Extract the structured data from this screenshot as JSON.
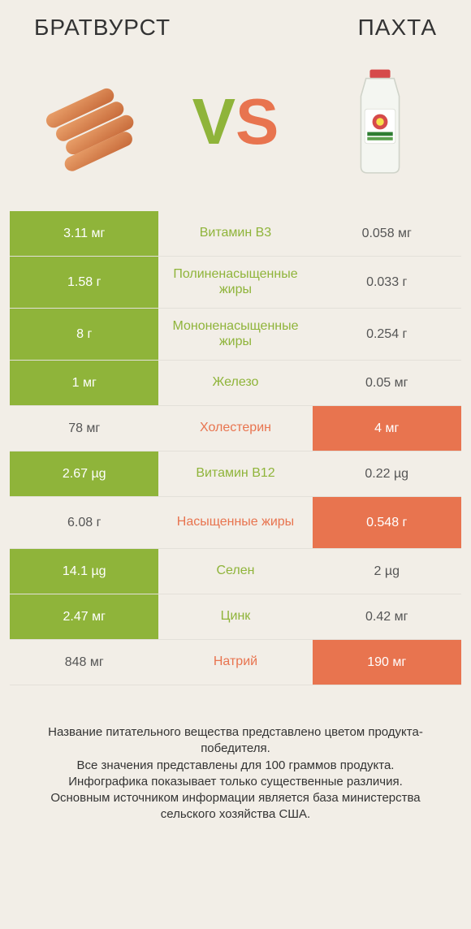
{
  "header": {
    "left_title": "БРАТВУРСТ",
    "right_title": "ПАХТА",
    "vs_v": "V",
    "vs_s": "S"
  },
  "colors": {
    "green": "#8fb43a",
    "orange": "#e8744f",
    "background": "#f2eee7"
  },
  "rows": [
    {
      "left": "3.11 мг",
      "mid": "Витамин B3",
      "right": "0.058 мг",
      "winner": "left",
      "tall": false
    },
    {
      "left": "1.58 г",
      "mid": "Полиненасыщенные жиры",
      "right": "0.033 г",
      "winner": "left",
      "tall": true
    },
    {
      "left": "8 г",
      "mid": "Мононенасыщенные жиры",
      "right": "0.254 г",
      "winner": "left",
      "tall": true
    },
    {
      "left": "1 мг",
      "mid": "Железо",
      "right": "0.05 мг",
      "winner": "left",
      "tall": false
    },
    {
      "left": "78 мг",
      "mid": "Холестерин",
      "right": "4 мг",
      "winner": "right",
      "tall": false
    },
    {
      "left": "2.67 µg",
      "mid": "Витамин B12",
      "right": "0.22 µg",
      "winner": "left",
      "tall": false
    },
    {
      "left": "6.08 г",
      "mid": "Насыщенные жиры",
      "right": "0.548 г",
      "winner": "right",
      "tall": true
    },
    {
      "left": "14.1 µg",
      "mid": "Селен",
      "right": "2 µg",
      "winner": "left",
      "tall": false
    },
    {
      "left": "2.47 мг",
      "mid": "Цинк",
      "right": "0.42 мг",
      "winner": "left",
      "tall": false
    },
    {
      "left": "848 мг",
      "mid": "Натрий",
      "right": "190 мг",
      "winner": "right",
      "tall": false
    }
  ],
  "footer": {
    "line1": "Название питательного вещества представлено цветом продукта-победителя.",
    "line2": "Все значения представлены для 100 граммов продукта.",
    "line3": "Инфографика показывает только существенные различия.",
    "line4": "Основным источником информации является база министерства сельского хозяйства США."
  },
  "images": {
    "left_alt": "sausages-icon",
    "right_alt": "buttermilk-bottle-icon"
  }
}
